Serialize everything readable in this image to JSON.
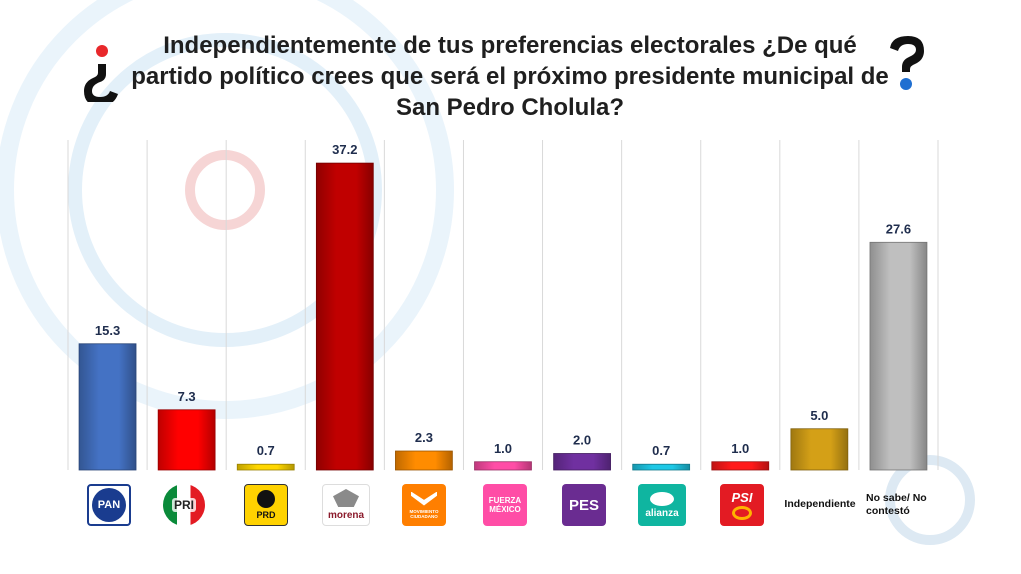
{
  "title": "Independientemente de tus preferencias electorales ¿De qué partido político crees que será el próximo presidente municipal de San Pedro Cholula?",
  "decor": {
    "q_open": "¿",
    "q_close": "?"
  },
  "chart_data": {
    "type": "bar",
    "title": "Independientemente de tus preferencias electorales ¿De qué partido político crees que será el próximo presidente municipal de San Pedro Cholula?",
    "categories": [
      "PAN",
      "PRI",
      "PRD",
      "morena",
      "Movimiento Ciudadano",
      "Fuerza México",
      "PES",
      "Nueva Alianza",
      "PSI",
      "Independiente",
      "No sabe/ No contestó"
    ],
    "values": [
      15.3,
      7.3,
      0.7,
      37.2,
      2.3,
      1.0,
      2.0,
      0.7,
      1.0,
      5.0,
      27.6
    ],
    "value_labels": [
      "15.3",
      "7.3",
      "0.7",
      "37.2",
      "2.3",
      "1.0",
      "2.0",
      "0.7",
      "1.0",
      "5.0",
      "27.6"
    ],
    "colors": [
      "#4472c4",
      "#ff0000",
      "#ffd700",
      "#c00000",
      "#ff8c00",
      "#ff4da6",
      "#7030a0",
      "#1ec8e6",
      "#ff1a1a",
      "#d4a017",
      "#bfbfbf"
    ],
    "ylim": [
      0,
      40
    ],
    "xlabel": "",
    "ylabel": "",
    "grid": true
  },
  "logos": {
    "pan": "PAN",
    "pri": "PRI",
    "prd": "PRD",
    "morena": "morena",
    "mc": "MOVIMIENTO CIUDADANO",
    "fuerza_line1": "FUERZA",
    "fuerza_line2": "MÉXICO",
    "pes": "PES",
    "alianza": "alianza",
    "psi": "PSI"
  },
  "labels": {
    "independiente": "Independiente",
    "nosabe_line1": "No sabe/",
    "nosabe_line2": "No contestó"
  }
}
